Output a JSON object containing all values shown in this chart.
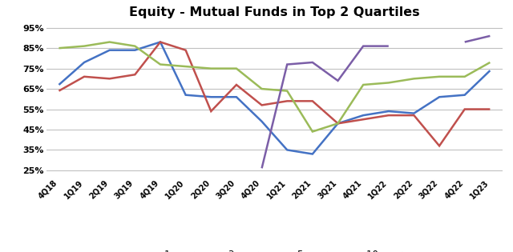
{
  "title": "Equity - Mutual Funds in Top 2 Quartiles",
  "categories": [
    "4Q18",
    "1Q19",
    "2Q19",
    "3Q19",
    "4Q19",
    "1Q20",
    "2Q20",
    "3Q20",
    "4Q20",
    "1Q21",
    "2Q21",
    "3Q21",
    "4Q21",
    "1Q22",
    "2Q22",
    "3Q22",
    "4Q22",
    "1Q23"
  ],
  "series": {
    "1 year": [
      0.67,
      0.78,
      0.84,
      0.84,
      0.88,
      0.62,
      0.61,
      0.61,
      0.49,
      0.35,
      0.33,
      0.48,
      0.52,
      0.54,
      0.53,
      0.61,
      0.62,
      0.74
    ],
    "3 years": [
      0.64,
      0.71,
      0.7,
      0.72,
      0.88,
      0.84,
      0.54,
      0.67,
      0.57,
      0.59,
      0.59,
      0.48,
      0.5,
      0.52,
      0.52,
      0.37,
      0.55,
      0.55
    ],
    "5 years": [
      0.85,
      0.86,
      0.88,
      0.86,
      0.77,
      0.76,
      0.75,
      0.75,
      0.65,
      0.64,
      0.44,
      0.48,
      0.67,
      0.68,
      0.7,
      0.71,
      0.71,
      0.78
    ],
    "10 years": [
      null,
      null,
      null,
      null,
      null,
      null,
      null,
      null,
      0.26,
      0.77,
      0.78,
      0.69,
      0.86,
      0.86,
      null,
      null,
      0.88,
      0.91
    ]
  },
  "colors": {
    "1 year": "#4472C4",
    "3 years": "#C0504D",
    "5 years": "#9BBB59",
    "10 years": "#7B5EA7"
  },
  "ylim": [
    0.22,
    0.975
  ],
  "yticks": [
    0.25,
    0.35,
    0.45,
    0.55,
    0.65,
    0.75,
    0.85,
    0.95
  ],
  "ytick_labels": [
    "25%",
    "35%",
    "45%",
    "55%",
    "65%",
    "75%",
    "85%",
    "95%"
  ],
  "background_color": "#FFFFFF",
  "grid_color": "#C0C0C0",
  "line_width": 1.8
}
